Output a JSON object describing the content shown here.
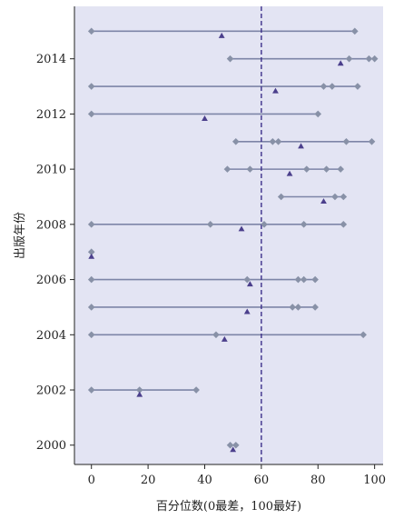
{
  "chart_data": {
    "type": "scatter",
    "subtype": "dot-range plot",
    "title": "",
    "xlabel": "百分位数(0最差，100最好)",
    "ylabel": "出版年份",
    "xlim": [
      -6,
      103
    ],
    "ylim": [
      1999.3,
      2015.9
    ],
    "xticks": [
      0,
      20,
      40,
      60,
      80,
      100
    ],
    "yticks": [
      2000,
      2002,
      2004,
      2006,
      2008,
      2010,
      2012,
      2014
    ],
    "tick_labels_x": [
      "0",
      "20",
      "40",
      "60",
      "80",
      "100"
    ],
    "tick_labels_y": [
      "2000",
      "2002",
      "2004",
      "2006",
      "2008",
      "2010",
      "2012",
      "2014"
    ],
    "reference_line_x": 60,
    "grid": false,
    "legend": "none",
    "colors": {
      "background": "#e3e4f3",
      "range_line": "#7d85a7",
      "diamond": "#8891a7",
      "triangle": "#4b3f8c",
      "reference_line": "#3b2f8a"
    },
    "rows": [
      {
        "year": 2015.0,
        "diamonds": [
          0,
          93
        ],
        "triangles": [
          46
        ],
        "range": [
          0,
          93
        ]
      },
      {
        "year": 2014.0,
        "diamonds": [
          49,
          91,
          98,
          100
        ],
        "triangles": [
          88
        ],
        "range": [
          49,
          100
        ]
      },
      {
        "year": 2013.0,
        "diamonds": [
          0,
          82,
          85,
          94
        ],
        "triangles": [
          65
        ],
        "range": [
          0,
          94
        ]
      },
      {
        "year": 2012.0,
        "diamonds": [
          0,
          80
        ],
        "triangles": [
          40
        ],
        "range": [
          0,
          80
        ]
      },
      {
        "year": 2011.0,
        "diamonds": [
          51,
          64,
          66,
          90,
          99
        ],
        "triangles": [
          74
        ],
        "range": [
          51,
          99
        ]
      },
      {
        "year": 2010.0,
        "diamonds": [
          48,
          56,
          76,
          83,
          88
        ],
        "triangles": [
          70
        ],
        "range": [
          48,
          88
        ]
      },
      {
        "year": 2009.0,
        "diamonds": [
          67,
          86,
          89
        ],
        "triangles": [
          82
        ],
        "range": [
          67,
          89
        ]
      },
      {
        "year": 2008.0,
        "diamonds": [
          0,
          42,
          61,
          75,
          89
        ],
        "triangles": [
          53
        ],
        "range": [
          0,
          89
        ]
      },
      {
        "year": 2007.0,
        "diamonds": [
          0
        ],
        "triangles": [
          0
        ],
        "range": [
          0,
          0
        ]
      },
      {
        "year": 2006.0,
        "diamonds": [
          0,
          55,
          73,
          75,
          79
        ],
        "triangles": [
          56
        ],
        "range": [
          0,
          79
        ]
      },
      {
        "year": 2005.0,
        "diamonds": [
          0,
          71,
          73,
          79
        ],
        "triangles": [
          55
        ],
        "range": [
          0,
          79
        ]
      },
      {
        "year": 2004.0,
        "diamonds": [
          0,
          44,
          96
        ],
        "triangles": [
          47
        ],
        "range": [
          0,
          96
        ]
      },
      {
        "year": 2002.0,
        "diamonds": [
          0,
          17,
          37
        ],
        "triangles": [
          17
        ],
        "range": [
          0,
          37
        ]
      },
      {
        "year": 2000.0,
        "diamonds": [
          49,
          51
        ],
        "triangles": [
          50
        ],
        "range": [
          49,
          51
        ]
      }
    ]
  }
}
